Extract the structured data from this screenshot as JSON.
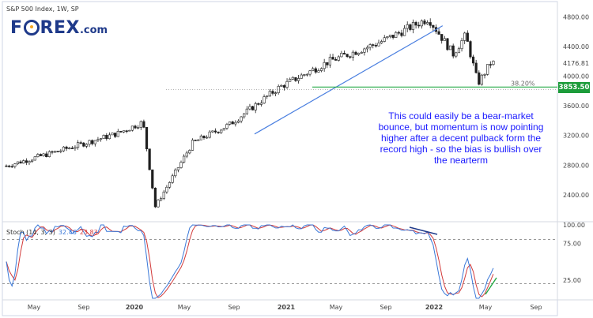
{
  "title": "S&P 500 Index, 1W, SP",
  "logo": {
    "pre": "F",
    "post": "REX",
    "suffix": ".com"
  },
  "annotation": "This could easily be a bear-market bounce, but momentum is now pointing higher after a decent pulback form the record high - so the bias is bullish over the nearterm",
  "fib_label": "38.20%",
  "current_price": "3853.50",
  "colors": {
    "up": "#1f1f1f",
    "down": "#1f1f1f",
    "trendline": "#4a7fe0",
    "support": "#22aa44",
    "stoch_k": "#3a78d8",
    "stoch_d": "#d23b3b",
    "divergence_up": "#22aa44",
    "divergence_down": "#1f3a8a"
  },
  "oscillator": {
    "name": "Stoch (14, 3, 3)",
    "k": "32.46",
    "d": "23.83",
    "levels": [
      80,
      20
    ]
  },
  "chart_data": [
    {
      "type": "candlestick",
      "title": "S&P 500 Index, 1W, SP",
      "x_ticks": [
        "May",
        "Sep",
        "2020",
        "May",
        "Sep",
        "2021",
        "May",
        "Sep",
        "2022",
        "May",
        "Sep"
      ],
      "y_ticks": [
        "4800.00",
        "4400.00",
        "4176.81",
        "4000.00",
        "3600.00",
        "3200.00",
        "2800.00",
        "2400.00"
      ],
      "ylim": [
        2100,
        4900
      ],
      "key_points": [
        {
          "date": "2019-03",
          "close": 2790
        },
        {
          "date": "2019-07",
          "close": 2980
        },
        {
          "date": "2019-12",
          "close": 3230
        },
        {
          "date": "2020-02",
          "close": 3380
        },
        {
          "date": "2020-03",
          "close": 2240
        },
        {
          "date": "2020-06",
          "close": 3100
        },
        {
          "date": "2020-09",
          "close": 3350
        },
        {
          "date": "2020-11",
          "close": 3600
        },
        {
          "date": "2021-01",
          "close": 3850
        },
        {
          "date": "2021-05",
          "close": 4200
        },
        {
          "date": "2021-09",
          "close": 4450
        },
        {
          "date": "2022-01",
          "close": 4780
        },
        {
          "date": "2022-03",
          "close": 4300
        },
        {
          "date": "2022-04",
          "close": 4550
        },
        {
          "date": "2022-05",
          "close": 3900
        },
        {
          "date": "2022-06",
          "close": 4176.81
        }
      ],
      "horizontal_lines": [
        {
          "label": "38.20%",
          "value": 3853.5
        }
      ]
    },
    {
      "type": "line",
      "title": "Stoch (14, 3, 3)",
      "ylim": [
        0,
        100
      ],
      "y_ticks": [
        "100.00",
        "75.00",
        "25.00"
      ],
      "levels": [
        80,
        20
      ],
      "series": [
        {
          "name": "32.46",
          "role": "%K"
        },
        {
          "name": "23.83",
          "role": "%D"
        }
      ]
    }
  ]
}
